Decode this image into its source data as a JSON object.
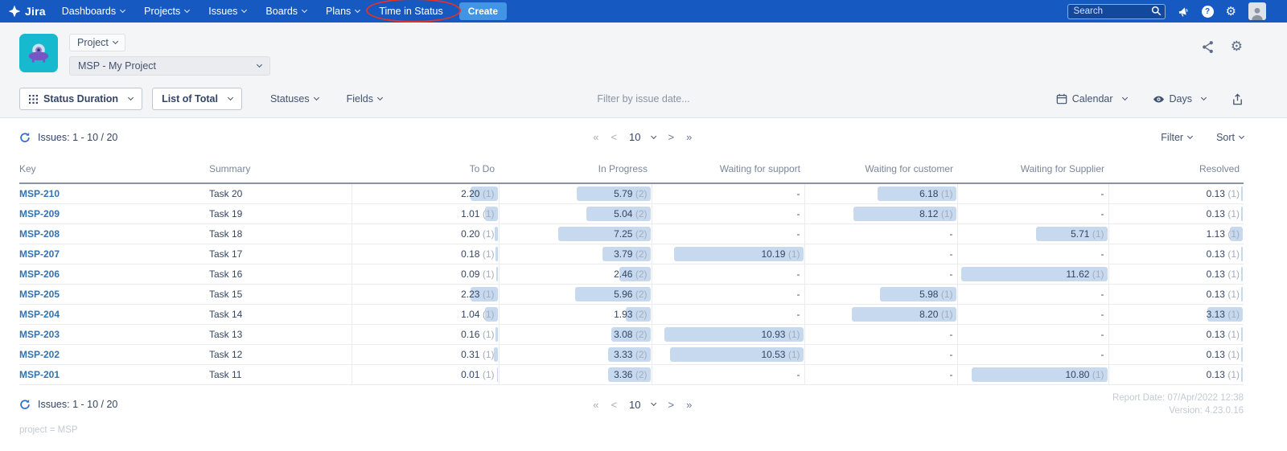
{
  "nav": {
    "brand": "Jira",
    "items": [
      {
        "label": "Dashboards"
      },
      {
        "label": "Projects"
      },
      {
        "label": "Issues"
      },
      {
        "label": "Boards"
      },
      {
        "label": "Plans"
      }
    ],
    "time_in_status": "Time in Status",
    "create_label": "Create",
    "search_placeholder": "Search"
  },
  "header": {
    "project_button": "Project",
    "project_select": "MSP - My Project"
  },
  "toolbar": {
    "status_duration": "Status Duration",
    "list_of_total": "List of Total",
    "statuses": "Statuses",
    "fields": "Fields",
    "date_filter": "Filter by issue date...",
    "calendar": "Calendar",
    "days": "Days"
  },
  "pager": {
    "issues_label": "Issues: 1 - 10 / 20",
    "first": "«",
    "prev": "<",
    "page_size": "10",
    "next": ">",
    "last": "»",
    "filter": "Filter",
    "sort": "Sort"
  },
  "table": {
    "bar_max": 12,
    "empty_cell": "-",
    "columns": [
      "Key",
      "Summary",
      "To Do",
      "In Progress",
      "Waiting for support",
      "Waiting for customer",
      "Waiting for Supplier",
      "Resolved"
    ],
    "rows": [
      {
        "key": "MSP-210",
        "summary": "Task 20",
        "cells": [
          {
            "v": "2.20",
            "n": "1"
          },
          {
            "v": "5.79",
            "n": "2"
          },
          null,
          {
            "v": "6.18",
            "n": "1"
          },
          null,
          {
            "v": "0.13",
            "n": "1"
          }
        ]
      },
      {
        "key": "MSP-209",
        "summary": "Task 19",
        "cells": [
          {
            "v": "1.01",
            "n": "1"
          },
          {
            "v": "5.04",
            "n": "2"
          },
          null,
          {
            "v": "8.12",
            "n": "1"
          },
          null,
          {
            "v": "0.13",
            "n": "1"
          }
        ]
      },
      {
        "key": "MSP-208",
        "summary": "Task 18",
        "cells": [
          {
            "v": "0.20",
            "n": "1"
          },
          {
            "v": "7.25",
            "n": "2"
          },
          null,
          null,
          {
            "v": "5.71",
            "n": "1"
          },
          {
            "v": "1.13",
            "n": "1"
          }
        ]
      },
      {
        "key": "MSP-207",
        "summary": "Task 17",
        "cells": [
          {
            "v": "0.18",
            "n": "1"
          },
          {
            "v": "3.79",
            "n": "2"
          },
          {
            "v": "10.19",
            "n": "1"
          },
          null,
          null,
          {
            "v": "0.13",
            "n": "1"
          }
        ]
      },
      {
        "key": "MSP-206",
        "summary": "Task 16",
        "cells": [
          {
            "v": "0.09",
            "n": "1"
          },
          {
            "v": "2.46",
            "n": "2"
          },
          null,
          null,
          {
            "v": "11.62",
            "n": "1"
          },
          {
            "v": "0.13",
            "n": "1"
          }
        ]
      },
      {
        "key": "MSP-205",
        "summary": "Task 15",
        "cells": [
          {
            "v": "2.23",
            "n": "1"
          },
          {
            "v": "5.96",
            "n": "2"
          },
          null,
          {
            "v": "5.98",
            "n": "1"
          },
          null,
          {
            "v": "0.13",
            "n": "1"
          }
        ]
      },
      {
        "key": "MSP-204",
        "summary": "Task 14",
        "cells": [
          {
            "v": "1.04",
            "n": "1"
          },
          {
            "v": "1.93",
            "n": "2"
          },
          null,
          {
            "v": "8.20",
            "n": "1"
          },
          null,
          {
            "v": "3.13",
            "n": "1"
          }
        ]
      },
      {
        "key": "MSP-203",
        "summary": "Task 13",
        "cells": [
          {
            "v": "0.16",
            "n": "1"
          },
          {
            "v": "3.08",
            "n": "2"
          },
          {
            "v": "10.93",
            "n": "1"
          },
          null,
          null,
          {
            "v": "0.13",
            "n": "1"
          }
        ]
      },
      {
        "key": "MSP-202",
        "summary": "Task 12",
        "cells": [
          {
            "v": "0.31",
            "n": "1"
          },
          {
            "v": "3.33",
            "n": "2"
          },
          {
            "v": "10.53",
            "n": "1"
          },
          null,
          null,
          {
            "v": "0.13",
            "n": "1"
          }
        ]
      },
      {
        "key": "MSP-201",
        "summary": "Task 11",
        "cells": [
          {
            "v": "0.01",
            "n": "1"
          },
          {
            "v": "3.36",
            "n": "2"
          },
          null,
          null,
          {
            "v": "10.80",
            "n": "1"
          },
          {
            "v": "0.13",
            "n": "1"
          }
        ]
      }
    ]
  },
  "footer": {
    "issues_label": "Issues: 1 - 10 / 20",
    "report_date": "Report Date: 07/Apr/2022 12:38",
    "version": "Version: 4.23.0.16",
    "query": "project = MSP"
  },
  "icons": {
    "nav_gear": "⚙",
    "header_gear": "⚙",
    "help": "?"
  },
  "colors": {
    "nav_bg": "#1659c0",
    "create_button": "#4294e5",
    "bar_fill": "#c6d9ee",
    "key_link": "#3572b0",
    "highlight_ellipse": "#e0332c",
    "project_avatar_bg": "#17b9cf",
    "project_avatar_ufo": "#7456c4",
    "band_bg": "#f4f5f7"
  }
}
